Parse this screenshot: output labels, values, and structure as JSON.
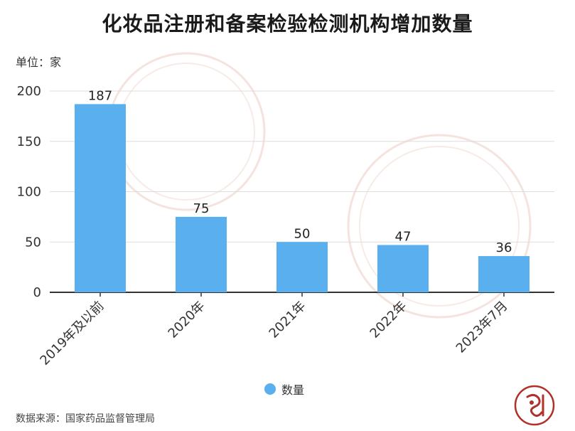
{
  "title": "化妆品注册和备案检验检测机构增加数量",
  "unit_label": "单位：家",
  "source": "数据来源：国家药品监督管理局",
  "colors": {
    "bar": "#5aafef",
    "axis": "#333333",
    "grid": "#dddddd",
    "watermark": "#f2dcd6",
    "logo": "#b0302a"
  },
  "chart_data": {
    "type": "bar",
    "title": "化妆品注册和备案检验检测机构增加数量",
    "categories": [
      "2019年及以前",
      "2020年",
      "2021年",
      "2022年",
      "2023年7月"
    ],
    "series": [
      {
        "name": "数量",
        "values": [
          187,
          75,
          50,
          47,
          36
        ]
      }
    ],
    "ylabel": "单位：家",
    "xlabel": "",
    "ylim": [
      0,
      200
    ],
    "yticks": [
      0,
      50,
      100,
      150,
      200
    ],
    "grid": true,
    "legend": "bottom-center",
    "data_labels": true
  }
}
